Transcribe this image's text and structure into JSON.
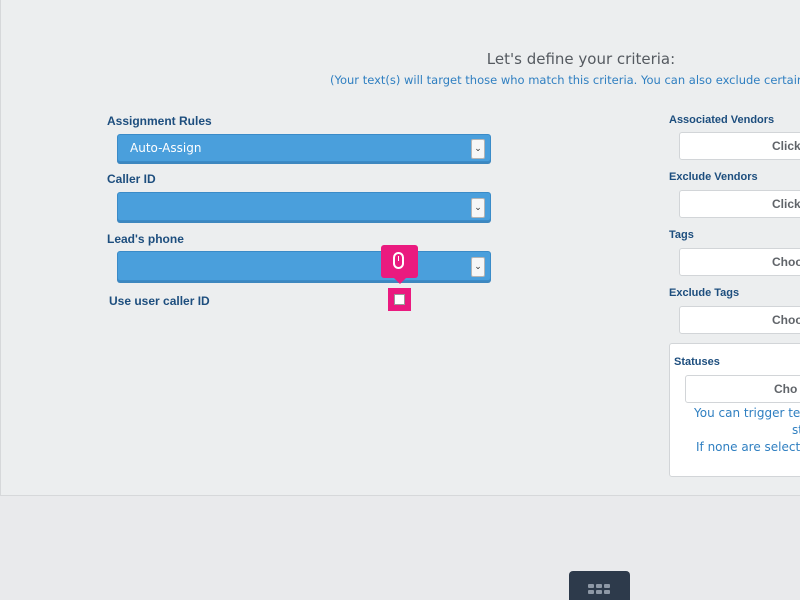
{
  "header": {
    "title": "Let's define your criteria:",
    "subtitle": "(Your text(s) will target those who match this criteria. You can also exclude certain cri"
  },
  "form": {
    "assignment_rules": {
      "label": "Assignment Rules",
      "value": "Auto-Assign"
    },
    "caller_id": {
      "label": "Caller ID",
      "value": ""
    },
    "leads_phone": {
      "label": "Lead's phone",
      "value": ""
    },
    "use_user_caller_id": {
      "label": "Use user caller ID",
      "checked": false
    }
  },
  "right": {
    "associated_vendors": {
      "label": "Associated Vendors",
      "button": "Click"
    },
    "exclude_vendors": {
      "label": "Exclude Vendors",
      "button": "Click"
    },
    "tags": {
      "label": "Tags",
      "button": "Choo"
    },
    "exclude_tags": {
      "label": "Exclude Tags",
      "button": "Choo"
    },
    "statuses": {
      "label": "Statuses",
      "button": "Cho",
      "note_line1": "You can trigger text",
      "note_line2": "st",
      "note_line3": "If none are selected"
    }
  },
  "icons": {
    "tooltip": "mouse-icon",
    "bottom": "grid-icon"
  },
  "colors": {
    "select_bg": "#4a9fdc",
    "highlight": "#ea1a7f",
    "label_text": "#1d4e7e",
    "note_text": "#2f7fc1",
    "bottom_button": "#2d3a4b"
  }
}
